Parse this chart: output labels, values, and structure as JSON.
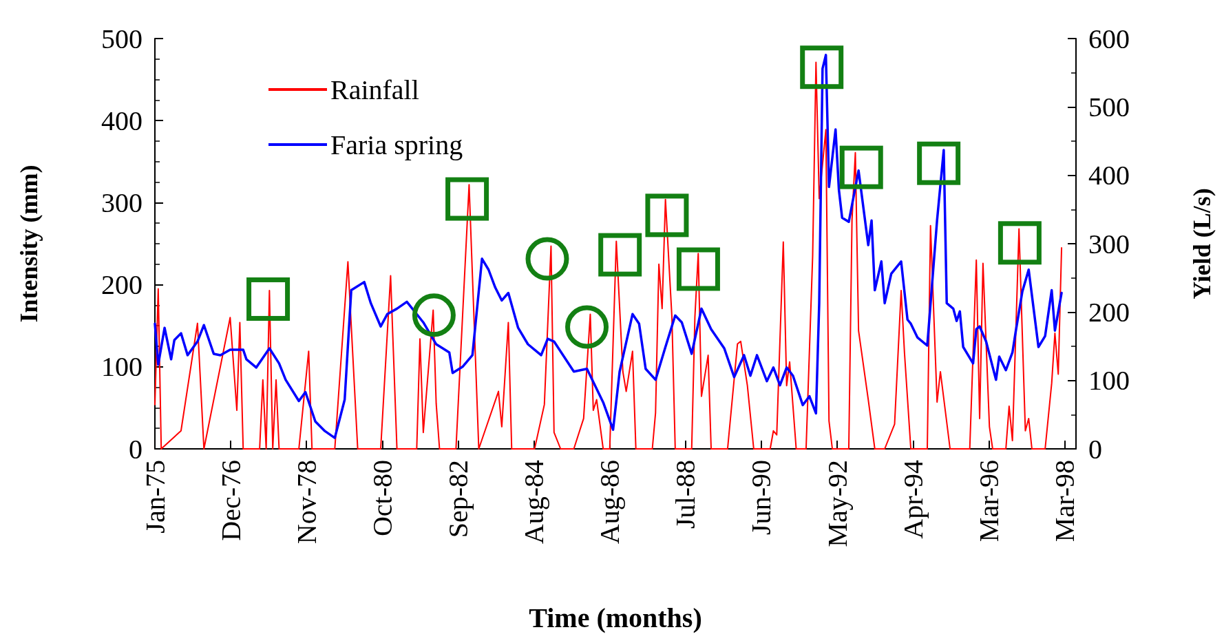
{
  "chart_data": {
    "type": "line",
    "xlabel": "Time (months)",
    "ylabel": "Intensity (mm)",
    "y2label": "Yield (L/s)",
    "xlim": [
      "1975-01-01",
      "1998-06-15"
    ],
    "xticks": [
      {
        "value": "1975-01-01",
        "label": "Jan-75"
      },
      {
        "value": "1976-12-06",
        "label": "Dec-76"
      },
      {
        "value": "1978-11-11",
        "label": "Nov-78"
      },
      {
        "value": "1980-10-16",
        "label": "Oct-80"
      },
      {
        "value": "1982-09-21",
        "label": "Sep-82"
      },
      {
        "value": "1984-08-27",
        "label": "Aug-84"
      },
      {
        "value": "1986-08-02",
        "label": "Aug-86"
      },
      {
        "value": "1988-07-06",
        "label": "Jul-88"
      },
      {
        "value": "1990-06-11",
        "label": "Jun-90"
      },
      {
        "value": "1992-05-17",
        "label": "May-92"
      },
      {
        "value": "1994-04-22",
        "label": "Apr-94"
      },
      {
        "value": "1996-03-27",
        "label": "Mar-96"
      },
      {
        "value": "1998-03-02",
        "label": "Mar-98"
      }
    ],
    "ylim": [
      0,
      500
    ],
    "yticks": [
      0,
      100,
      200,
      300,
      400,
      500
    ],
    "y2lim": [
      0,
      600
    ],
    "y2ticks": [
      0,
      100,
      200,
      300,
      400,
      500,
      600
    ],
    "legend": "top left",
    "grid": false,
    "series": [
      {
        "name": "Rainfall",
        "color": "#ff0000",
        "x": [
          "1975-01",
          "1975-02",
          "1975-03",
          "1975-09",
          "1976-02",
          "1976-04",
          "1976-12",
          "1977-02",
          "1977-03",
          "1977-04",
          "1977-09",
          "1977-10",
          "1977-11",
          "1977-12",
          "1978-01",
          "1978-02",
          "1978-03",
          "1978-09",
          "1978-12",
          "1979-01",
          "1979-08",
          "1979-12",
          "1980-03",
          "1980-10",
          "1981-01",
          "1981-03",
          "1981-09",
          "1981-10",
          "1981-11",
          "1982-02",
          "1982-03",
          "1982-04",
          "1982-09",
          "1983-01",
          "1983-04",
          "1983-10",
          "1983-11",
          "1984-01",
          "1984-02",
          "1984-09",
          "1984-12",
          "1985-02",
          "1985-03",
          "1985-05",
          "1985-09",
          "1985-12",
          "1986-02",
          "1986-03",
          "1986-04",
          "1986-06",
          "1986-08",
          "1986-10",
          "1986-12",
          "1987-01",
          "1987-03",
          "1987-04",
          "1987-09",
          "1987-10",
          "1987-11",
          "1987-12",
          "1988-01",
          "1988-03",
          "1988-04",
          "1988-09",
          "1988-10",
          "1988-11",
          "1988-12",
          "1989-02",
          "1989-03",
          "1989-08",
          "1989-11",
          "1989-12",
          "1990-02",
          "1990-04",
          "1990-09",
          "1990-10",
          "1990-11",
          "1991-01",
          "1991-02",
          "1991-03",
          "1991-05",
          "1991-08",
          "1991-10",
          "1991-11",
          "1991-12",
          "1992-02",
          "1992-03",
          "1992-04",
          "1992-09",
          "1992-10",
          "1992-11",
          "1992-12",
          "1993-03",
          "1993-05",
          "1993-08",
          "1993-11",
          "1994-01",
          "1994-02",
          "1994-04",
          "1994-09",
          "1994-10",
          "1994-12",
          "1995-01",
          "1995-04",
          "1995-10",
          "1995-12",
          "1996-01",
          "1996-02",
          "1996-04",
          "1996-05",
          "1996-09",
          "1996-10",
          "1996-11",
          "1997-01",
          "1997-03",
          "1997-04",
          "1997-05",
          "1997-09",
          "1997-11",
          "1997-12",
          "1998-01",
          "1998-02"
        ],
        "values": [
          54,
          195,
          0,
          22,
          153,
          0,
          160,
          47,
          154,
          0,
          0,
          84,
          0,
          193,
          0,
          84,
          0,
          0,
          119,
          0,
          0,
          228,
          0,
          0,
          211,
          0,
          0,
          134,
          20,
          169,
          55,
          0,
          0,
          322,
          0,
          70,
          27,
          154,
          0,
          0,
          54,
          247,
          20,
          0,
          0,
          37,
          164,
          47,
          60,
          0,
          0,
          253,
          94,
          70,
          119,
          0,
          0,
          44,
          225,
          171,
          304,
          161,
          0,
          0,
          161,
          238,
          64,
          114,
          0,
          0,
          128,
          131,
          77,
          0,
          0,
          22,
          17,
          252,
          77,
          106,
          0,
          0,
          235,
          471,
          305,
          389,
          34,
          0,
          0,
          279,
          361,
          144,
          60,
          0,
          0,
          30,
          193,
          117,
          0,
          0,
          272,
          57,
          94,
          0,
          0,
          230,
          37,
          226,
          27,
          0,
          0,
          52,
          10,
          268,
          22,
          37,
          0,
          0,
          80,
          141,
          91,
          245
        ]
      },
      {
        "name": "Faria spring",
        "color": "#0000ff",
        "axis": "y2",
        "x": [
          "1975-01",
          "1975-02",
          "1975-04",
          "1975-06",
          "1975-07",
          "1975-09",
          "1975-11",
          "1976-02",
          "1976-04",
          "1976-07",
          "1976-09",
          "1976-12",
          "1977-04",
          "1977-05",
          "1977-08",
          "1977-12",
          "1978-03",
          "1978-05",
          "1978-09",
          "1978-11",
          "1979-02",
          "1979-05",
          "1979-08",
          "1979-11",
          "1980-01",
          "1980-05",
          "1980-07",
          "1980-10",
          "1980-12",
          "1981-03",
          "1981-06",
          "1981-11",
          "1982-03",
          "1982-07",
          "1982-08",
          "1982-11",
          "1983-02",
          "1983-05",
          "1983-07",
          "1983-09",
          "1983-11",
          "1984-01",
          "1984-04",
          "1984-07",
          "1984-11",
          "1985-01",
          "1985-03",
          "1985-09",
          "1986-01",
          "1986-06",
          "1986-09",
          "1986-11",
          "1987-03",
          "1987-05",
          "1987-07",
          "1987-10",
          "1988-01",
          "1988-04",
          "1988-06",
          "1988-09",
          "1988-12",
          "1989-03",
          "1989-07",
          "1989-10",
          "1990-01",
          "1990-03",
          "1990-05",
          "1990-08",
          "1990-10",
          "1990-12",
          "1991-02",
          "1991-04",
          "1991-07",
          "1991-09",
          "1991-11",
          "1991-12",
          "1992-01",
          "1992-02",
          "1992-03",
          "1992-05",
          "1992-06",
          "1992-07",
          "1992-09",
          "1992-12",
          "1993-03",
          "1993-04",
          "1993-05",
          "1993-07",
          "1993-08",
          "1993-10",
          "1994-01",
          "1994-03",
          "1994-04",
          "1994-06",
          "1994-09",
          "1994-12",
          "1995-02",
          "1995-03",
          "1995-05",
          "1995-06",
          "1995-07",
          "1995-08",
          "1995-11",
          "1995-12",
          "1996-01",
          "1996-03",
          "1996-06",
          "1996-07",
          "1996-09",
          "1996-11",
          "1996-12",
          "1997-02",
          "1997-04",
          "1997-07",
          "1997-09",
          "1997-11",
          "1997-12",
          "1998-02"
        ],
        "values": [
          183,
          123,
          177,
          131,
          159,
          169,
          137,
          157,
          181,
          139,
          137,
          145,
          145,
          131,
          119,
          147,
          125,
          101,
          70,
          83,
          40,
          26,
          16,
          72,
          232,
          244,
          213,
          179,
          197,
          205,
          215,
          185,
          153,
          141,
          111,
          120,
          137,
          278,
          262,
          236,
          217,
          228,
          177,
          153,
          137,
          161,
          157,
          113,
          117,
          68,
          28,
          113,
          197,
          183,
          117,
          101,
          149,
          195,
          185,
          139,
          205,
          175,
          147,
          105,
          137,
          107,
          137,
          99,
          119,
          93,
          119,
          107,
          64,
          77,
          52,
          213,
          556,
          576,
          383,
          467,
          379,
          338,
          332,
          407,
          298,
          334,
          232,
          274,
          213,
          256,
          274,
          189,
          183,
          163,
          151,
          334,
          437,
          213,
          205,
          187,
          201,
          149,
          125,
          175,
          179,
          157,
          101,
          135,
          115,
          141,
          171,
          230,
          262,
          149,
          165,
          232,
          173,
          228
        ]
      }
    ]
  }
}
